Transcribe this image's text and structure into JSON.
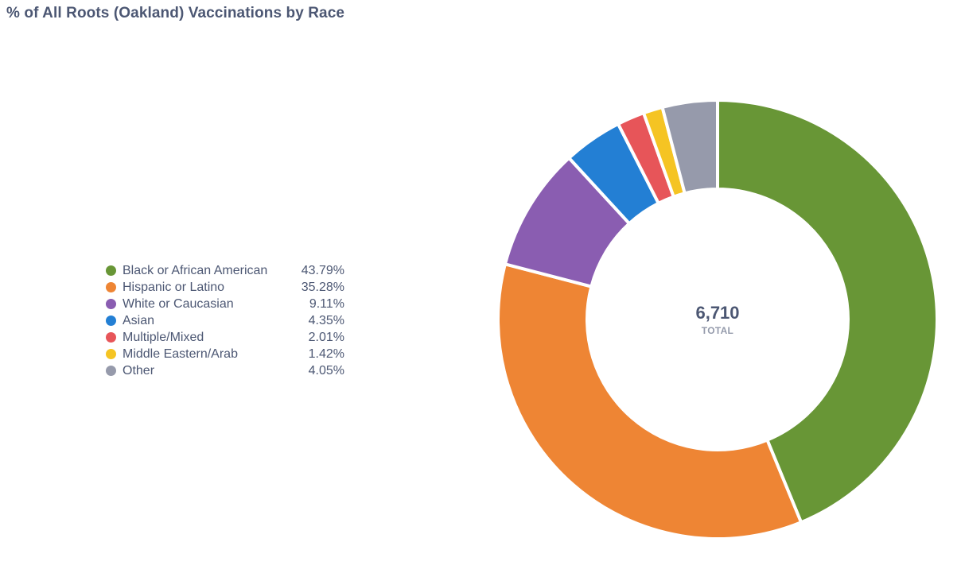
{
  "chart_data": {
    "type": "pie",
    "title": "% of All Roots (Oakland) Vaccinations by Race",
    "total": {
      "value": "6,710",
      "label": "TOTAL"
    },
    "slices": [
      {
        "name": "Black or African American",
        "percent": 43.79,
        "percent_label": "43.79%",
        "color": "#689636"
      },
      {
        "name": "Hispanic or Latino",
        "percent": 35.28,
        "percent_label": "35.28%",
        "color": "#ee8534"
      },
      {
        "name": "White or Caucasian",
        "percent": 9.11,
        "percent_label": "9.11%",
        "color": "#8a5db1"
      },
      {
        "name": "Asian",
        "percent": 4.35,
        "percent_label": "4.35%",
        "color": "#237fd4"
      },
      {
        "name": "Multiple/Mixed",
        "percent": 2.01,
        "percent_label": "2.01%",
        "color": "#e75559"
      },
      {
        "name": "Middle Eastern/Arab",
        "percent": 1.42,
        "percent_label": "1.42%",
        "color": "#f5c423"
      },
      {
        "name": "Other",
        "percent": 4.05,
        "percent_label": "4.05%",
        "color": "#969aab"
      }
    ],
    "legend_position": "left"
  }
}
